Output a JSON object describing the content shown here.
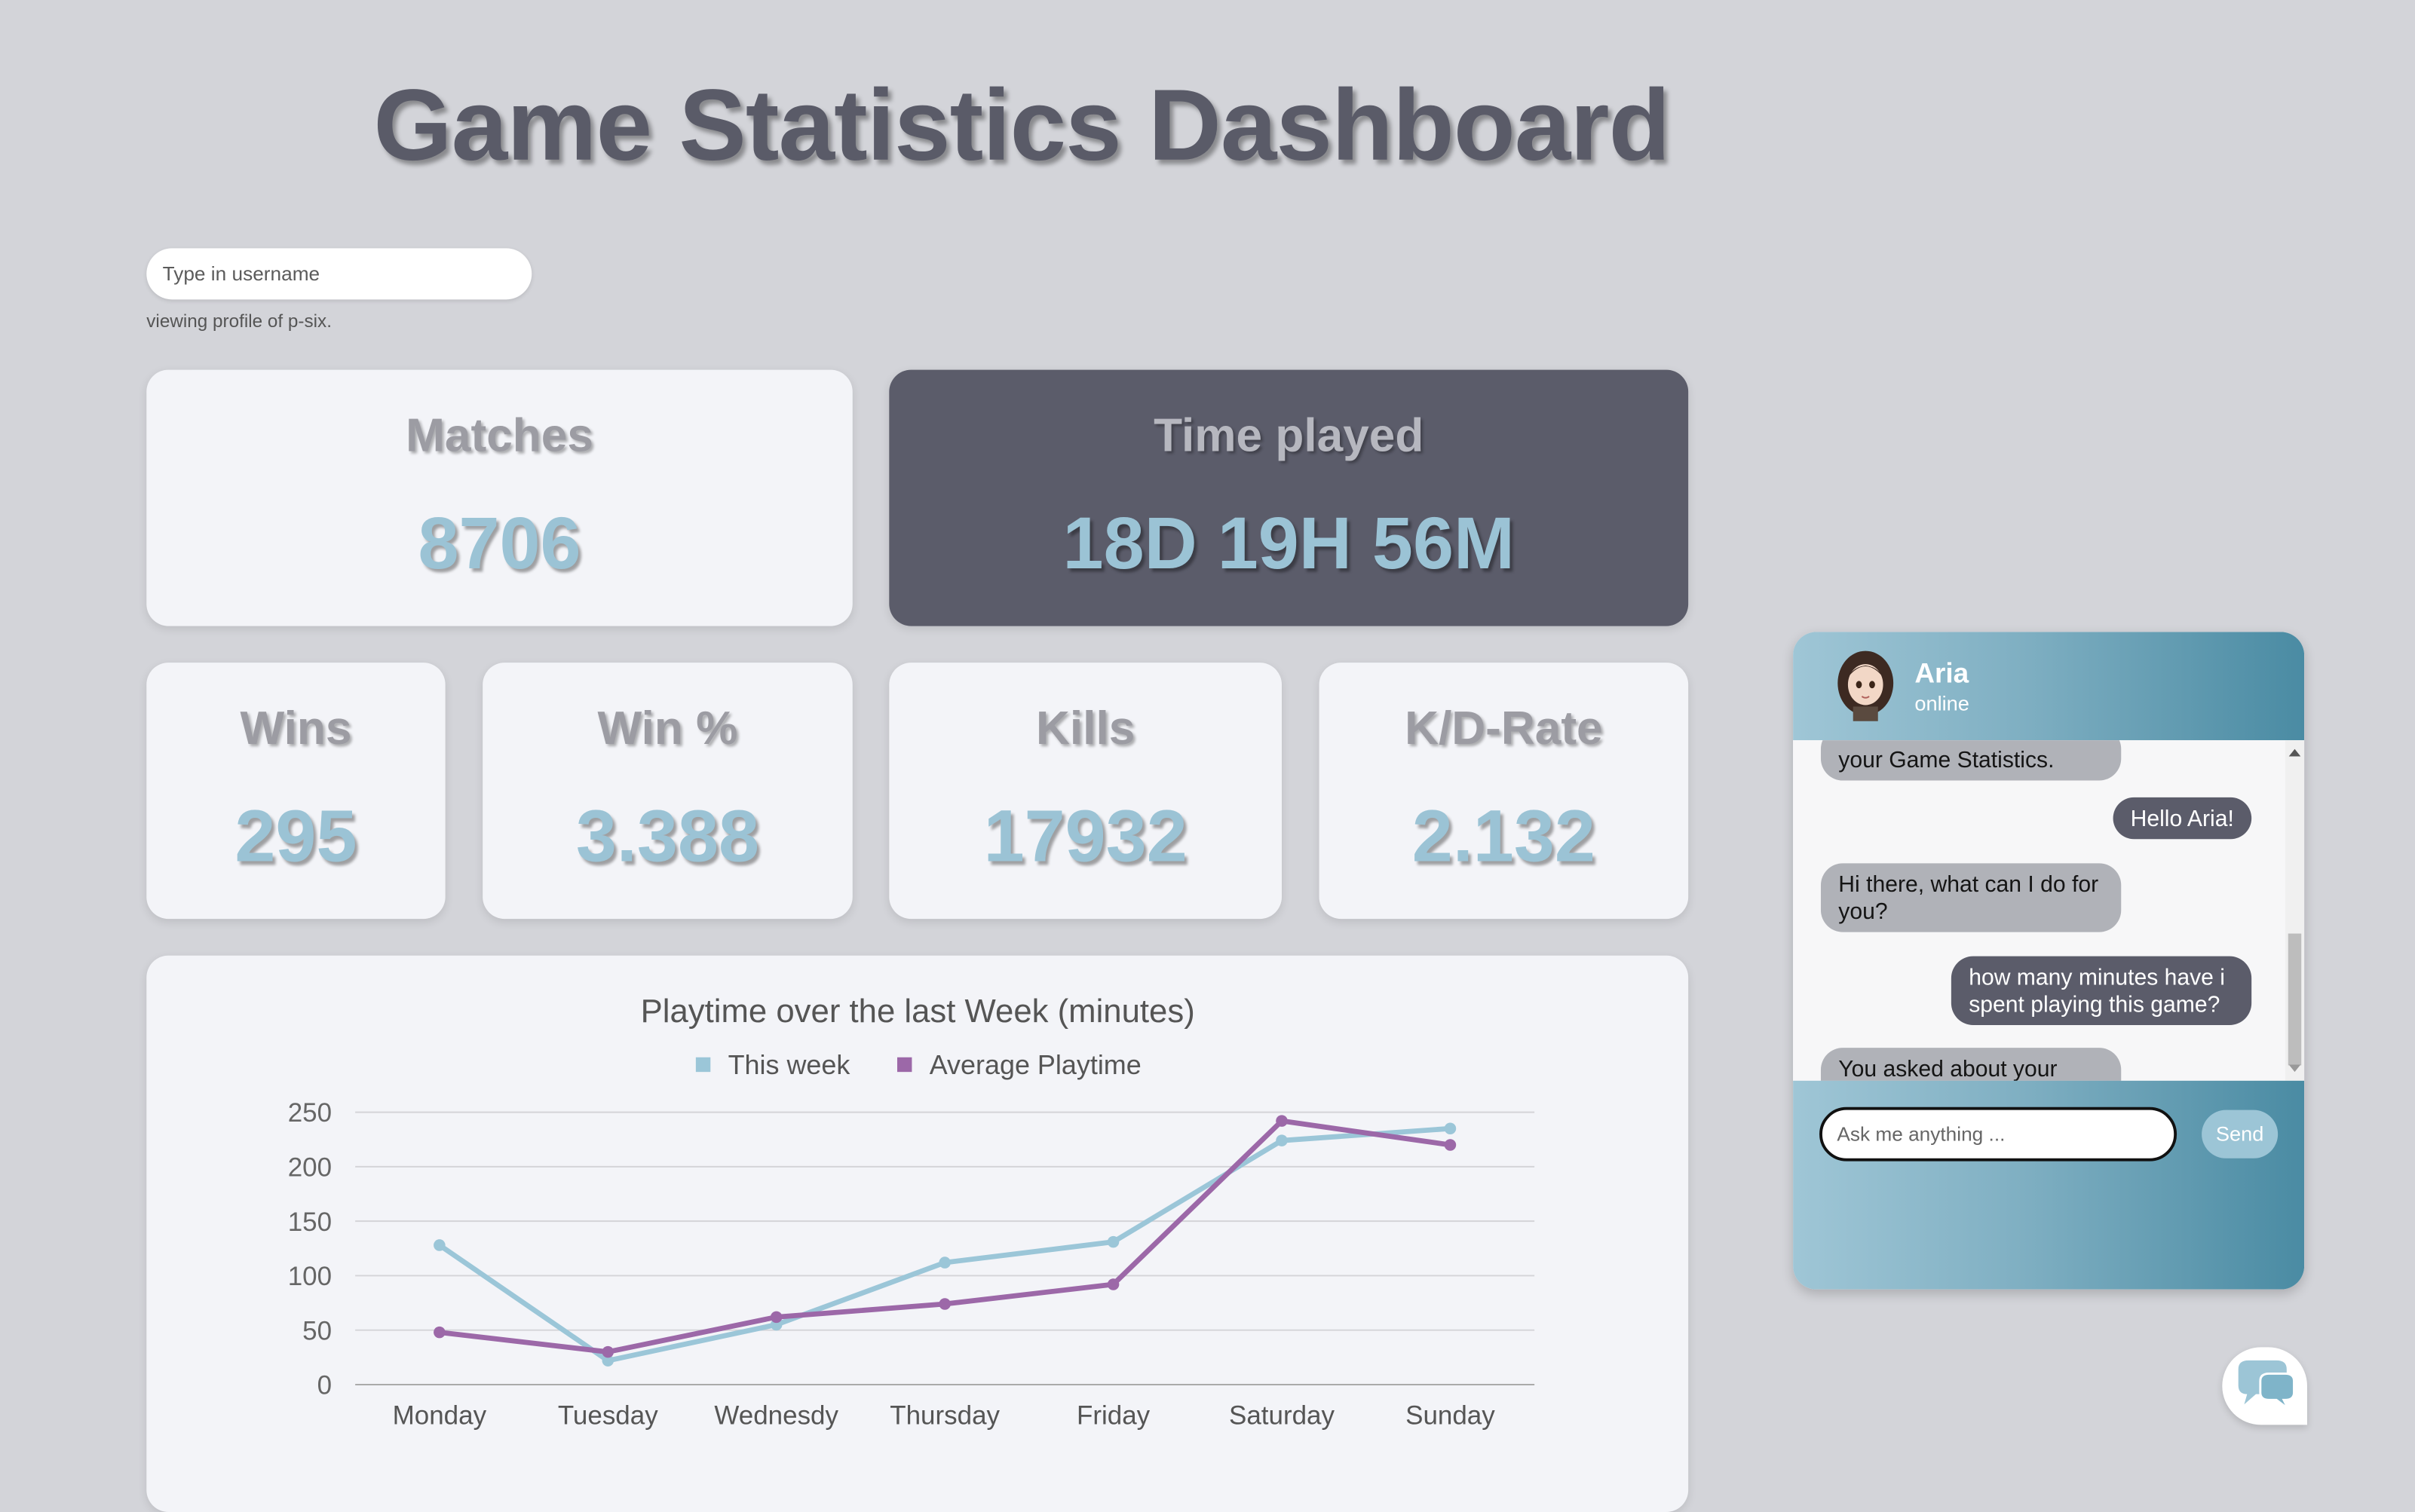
{
  "header": {
    "title": "Game Statistics Dashboard"
  },
  "profile": {
    "username_placeholder": "Type in username",
    "username_value": "",
    "viewing_text": "viewing profile of p-six."
  },
  "stats": {
    "matches": {
      "label": "Matches",
      "value": "8706"
    },
    "time_played": {
      "label": "Time played",
      "value": "18D 19H 56M"
    },
    "wins": {
      "label": "Wins",
      "value": "295"
    },
    "win_pct": {
      "label": "Win %",
      "value": "3.388"
    },
    "kills": {
      "label": "Kills",
      "value": "17932"
    },
    "kd_rate": {
      "label": "K/D-Rate",
      "value": "2.132"
    }
  },
  "chart_data": {
    "type": "line",
    "title": "Playtime over the last Week (minutes)",
    "categories": [
      "Monday",
      "Tuesday",
      "Wednesdy",
      "Thursday",
      "Friday",
      "Saturday",
      "Sunday"
    ],
    "series": [
      {
        "name": "This week",
        "color": "#9bc6d8",
        "values": [
          128,
          22,
          55,
          112,
          131,
          224,
          235
        ]
      },
      {
        "name": "Average Playtime",
        "color": "#9c68a8",
        "values": [
          48,
          30,
          62,
          74,
          92,
          242,
          220
        ]
      }
    ],
    "ylim": [
      0,
      250
    ],
    "yticks": [
      0,
      50,
      100,
      150,
      200,
      250
    ],
    "grid": true,
    "legend": "top"
  },
  "chat": {
    "name": "Aria",
    "status": "online",
    "messages": [
      {
        "from": "bot",
        "text": "your Game Statistics."
      },
      {
        "from": "user",
        "text": "Hello Aria!"
      },
      {
        "from": "bot",
        "text": "Hi there, what can I do for you?"
      },
      {
        "from": "user",
        "text": "how many minutes have i spent playing this game?"
      },
      {
        "from": "bot",
        "text": "You asked about your how many minutes you have played."
      }
    ],
    "input_placeholder": "Ask me anything ...",
    "send_label": "Send"
  },
  "icons": {
    "chat_fab": "chat-bubbles-icon",
    "avatar": "avatar-girl-icon"
  }
}
